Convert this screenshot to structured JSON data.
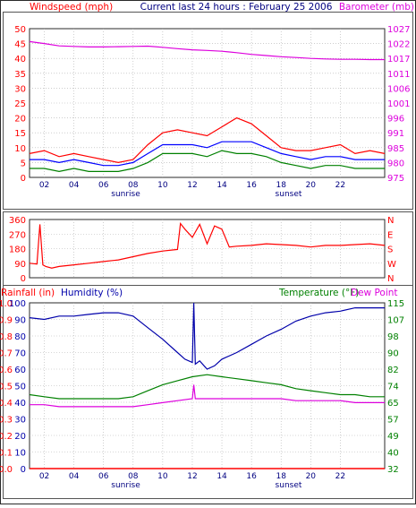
{
  "header": {
    "left_title": "Windspeed (mph)",
    "center_title": "Current last 24 hours : February 25 2006",
    "right_title": "Barometer (mb)"
  },
  "colors": {
    "frame": "#2a2a2a",
    "plot_bg": "#ffffff",
    "grid": "#b0b0b0",
    "wind_high": "#ff0000",
    "wind_avg": "#0000ff",
    "wind_low": "#008000",
    "barometer": "#dd00dd",
    "direction": "#ff0000",
    "rain_axis": "#ff0000",
    "humidity": "#0000aa",
    "temperature": "#008000",
    "dewpoint": "#dd00dd",
    "label_dark": "#000080"
  },
  "time_axis": {
    "domain_hours": [
      0,
      24
    ],
    "ticks": [
      "02",
      "04",
      "06",
      "08",
      "10",
      "12",
      "14",
      "16",
      "18",
      "20",
      "22"
    ],
    "tick_hours": [
      1,
      3,
      5,
      7,
      9,
      11,
      13,
      15,
      17,
      19,
      21
    ],
    "sunrise_label": "sunrise",
    "sunrise_hour": 6.5,
    "sunset_label": "sunset",
    "sunset_hour": 17.5
  },
  "chart_data": [
    {
      "type": "line",
      "panel": "wind",
      "y_left": {
        "label": "Windspeed (mph)",
        "range": [
          0,
          50
        ],
        "ticks": [
          "0",
          "5",
          "10",
          "15",
          "20",
          "25",
          "30",
          "35",
          "40",
          "45",
          "50"
        ]
      },
      "y_right": {
        "label": "Barometer (mb)",
        "range": [
          975,
          1027
        ],
        "ticks": [
          "975",
          "980",
          "985",
          "991",
          "996",
          "1001",
          "1006",
          "1011",
          "1017",
          "1022",
          "1027"
        ]
      },
      "grid": true,
      "series": [
        {
          "name": "Windspeed (mph)",
          "axis": "left",
          "x": [
            0,
            1,
            2,
            3,
            4,
            5,
            6,
            7,
            8,
            9,
            10,
            11,
            12,
            13,
            14,
            15,
            16,
            17,
            18,
            19,
            20,
            21,
            22,
            23,
            24
          ],
          "values": [
            8,
            9,
            7,
            8,
            7,
            6,
            5,
            6,
            11,
            15,
            16,
            15,
            14,
            17,
            20,
            18,
            14,
            10,
            9,
            9,
            10,
            11,
            8,
            9,
            8
          ]
        },
        {
          "name": "",
          "axis": "left",
          "x": [
            0,
            1,
            2,
            3,
            4,
            5,
            6,
            7,
            8,
            9,
            10,
            11,
            12,
            13,
            14,
            15,
            16,
            17,
            18,
            19,
            20,
            21,
            22,
            23,
            24
          ],
          "values": [
            6,
            6,
            5,
            6,
            5,
            4,
            4,
            5,
            8,
            11,
            11,
            11,
            10,
            12,
            12,
            12,
            10,
            8,
            7,
            6,
            7,
            7,
            6,
            6,
            6
          ]
        },
        {
          "name": "",
          "axis": "left",
          "x": [
            0,
            1,
            2,
            3,
            4,
            5,
            6,
            7,
            8,
            9,
            10,
            11,
            12,
            13,
            14,
            15,
            16,
            17,
            18,
            19,
            20,
            21,
            22,
            23,
            24
          ],
          "values": [
            3,
            3,
            2,
            3,
            2,
            2,
            2,
            3,
            5,
            8,
            8,
            8,
            7,
            9,
            8,
            8,
            7,
            5,
            4,
            3,
            4,
            4,
            3,
            3,
            3
          ]
        },
        {
          "name": "Barometer (mb)",
          "axis": "right",
          "x": [
            0,
            1,
            2,
            3,
            4,
            5,
            6,
            7,
            8,
            9,
            10,
            11,
            12,
            13,
            14,
            15,
            16,
            17,
            18,
            19,
            20,
            21,
            22,
            23,
            24
          ],
          "values": [
            1022.5,
            1021.8,
            1021.0,
            1020.8,
            1020.6,
            1020.6,
            1020.7,
            1020.8,
            1020.9,
            1020.5,
            1020.0,
            1019.6,
            1019.4,
            1019.1,
            1018.6,
            1018.0,
            1017.6,
            1017.2,
            1016.9,
            1016.6,
            1016.4,
            1016.3,
            1016.3,
            1016.2,
            1016.2
          ]
        }
      ]
    },
    {
      "type": "line",
      "panel": "direction",
      "y_left": {
        "range": [
          0,
          360
        ],
        "ticks": [
          "0",
          "90",
          "180",
          "270",
          "360"
        ]
      },
      "y_right": {
        "ticks": [
          "N",
          "W",
          "S",
          "E",
          "N"
        ]
      },
      "grid": true,
      "series": [
        {
          "name": "",
          "x": [
            0,
            0.5,
            0.7,
            0.9,
            1.1,
            1.5,
            2,
            3,
            4,
            5,
            6,
            7,
            8,
            9,
            10,
            10.2,
            10.5,
            11,
            11.5,
            12,
            12.5,
            13,
            13.5,
            14,
            15,
            16,
            17,
            18,
            19,
            20,
            21,
            22,
            23,
            24
          ],
          "values": [
            90,
            85,
            330,
            80,
            70,
            60,
            70,
            80,
            90,
            100,
            110,
            130,
            150,
            165,
            175,
            335,
            300,
            250,
            330,
            210,
            320,
            300,
            190,
            195,
            200,
            210,
            205,
            200,
            190,
            200,
            200,
            205,
            210,
            200
          ]
        }
      ]
    },
    {
      "type": "line",
      "panel": "rain_humidity_temp",
      "y_left": {
        "label": "Rainfall (in)",
        "range": [
          0,
          1
        ],
        "ticks": [
          "0.0",
          "0.1",
          "0.2",
          "0.3",
          "0.4",
          "0.5",
          "0.6",
          "0.7",
          "0.8",
          "0.9",
          "1.0"
        ]
      },
      "y_left2": {
        "label": "Humidity (%)",
        "range": [
          0,
          100
        ],
        "ticks": [
          "0",
          "10",
          "20",
          "30",
          "40",
          "50",
          "60",
          "70",
          "80",
          "90",
          "100"
        ]
      },
      "y_right": {
        "label": "Temperature (°F)",
        "range": [
          32,
          115
        ],
        "ticks": [
          "32",
          "40",
          "49",
          "57",
          "65",
          "74",
          "82",
          "90",
          "98",
          "107",
          "115"
        ]
      },
      "y_right_label2": "Dew Point",
      "grid": true,
      "series": [
        {
          "name": "Rainfall (in)",
          "axis": "rain",
          "x": [
            0,
            24
          ],
          "values": [
            0,
            0
          ]
        },
        {
          "name": "Humidity (%)",
          "axis": "humidity",
          "x": [
            0,
            1,
            2,
            3,
            4,
            5,
            6,
            7,
            8,
            9,
            10,
            10.5,
            11,
            11.1,
            11.2,
            11.5,
            12,
            12.5,
            13,
            14,
            15,
            16,
            17,
            18,
            19,
            20,
            21,
            22,
            23,
            24
          ],
          "values": [
            91,
            90,
            92,
            92,
            93,
            94,
            94,
            92,
            85,
            78,
            70,
            66,
            64,
            100,
            63,
            65,
            60,
            62,
            66,
            70,
            75,
            80,
            84,
            89,
            92,
            94,
            95,
            97,
            97,
            97
          ]
        },
        {
          "name": "Temperature (°F)",
          "axis": "temp",
          "x": [
            0,
            1,
            2,
            3,
            4,
            5,
            6,
            7,
            8,
            9,
            10,
            11,
            12,
            13,
            14,
            15,
            16,
            17,
            18,
            19,
            20,
            21,
            22,
            23,
            24
          ],
          "values": [
            69,
            68,
            67,
            67,
            67,
            67,
            67,
            68,
            71,
            74,
            76,
            78,
            79,
            78,
            77,
            76,
            75,
            74,
            72,
            71,
            70,
            69,
            69,
            68,
            68
          ]
        },
        {
          "name": "Dew Point",
          "axis": "temp",
          "x": [
            0,
            1,
            2,
            3,
            4,
            5,
            6,
            7,
            8,
            9,
            10,
            11,
            11.1,
            11.2,
            12,
            13,
            14,
            15,
            16,
            17,
            18,
            19,
            20,
            21,
            22,
            23,
            24
          ],
          "values": [
            64,
            64,
            63,
            63,
            63,
            63,
            63,
            63,
            64,
            65,
            66,
            67,
            74,
            67,
            67,
            67,
            67,
            67,
            67,
            67,
            66,
            66,
            66,
            66,
            65,
            65,
            65
          ]
        }
      ]
    }
  ]
}
